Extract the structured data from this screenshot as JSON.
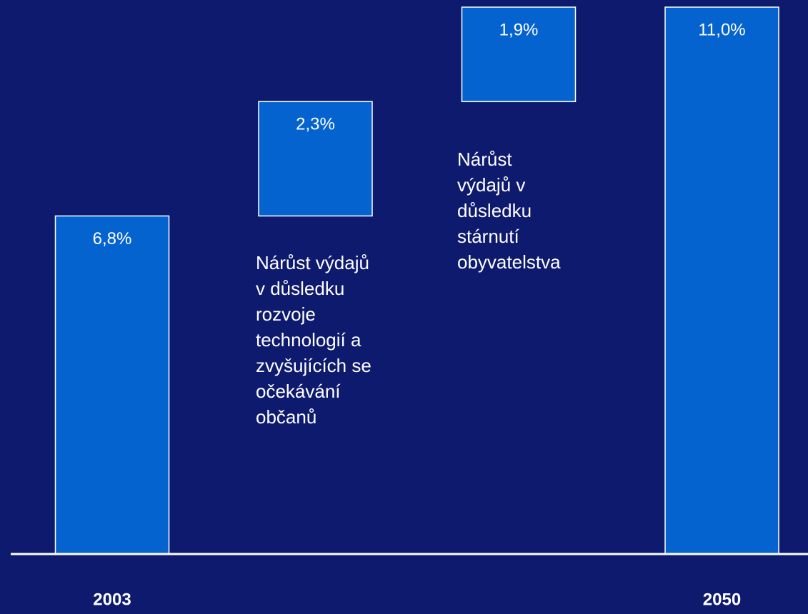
{
  "chart_data": {
    "type": "waterfall",
    "categories": [
      "2003",
      null,
      null,
      "2050"
    ],
    "values": [
      6.8,
      2.3,
      1.9,
      11.0
    ],
    "value_labels": [
      "6,8%",
      "2,3%",
      "1,9%",
      "11,0%"
    ],
    "color": "#0563cf",
    "background": "#0e1a6e",
    "ylim": [
      0,
      11
    ],
    "annotations": [
      "Nárůst výdajů\nv důsledku\nrozvoje\ntechnologií a\nzvyšujících se\nočekávání\nobčanů",
      "Nárůst\nvýdajů v\ndůsledku\nstárnutí\nobyvatelstva"
    ]
  }
}
